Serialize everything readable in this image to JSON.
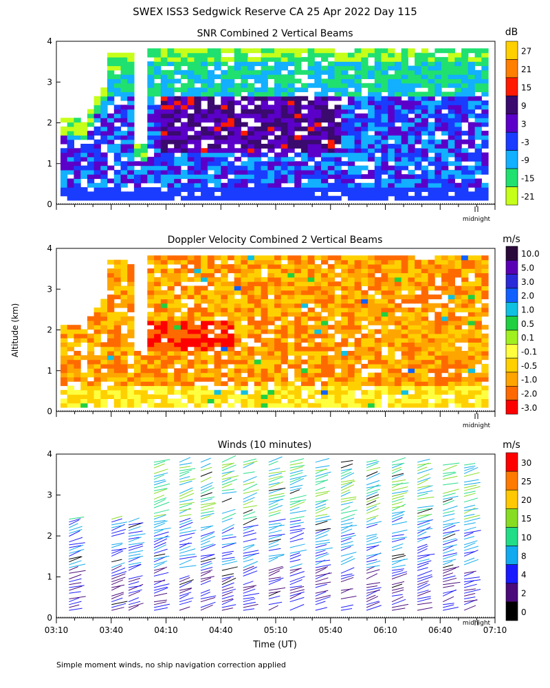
{
  "page_title": "SWEX ISS3 Sedgwick Reserve CA  25 Apr 2022 Day 115",
  "footer_note": "Simple moment winds, no ship navigation correction applied",
  "shared_ylabel": "Altitude (km)",
  "colors": {
    "missing": "#ffffff",
    "axes": "#000000"
  },
  "chart_data": [
    {
      "type": "heatmap",
      "title": "SNR Combined 2 Vertical Beams",
      "unit": "dB",
      "xlabel": "",
      "ylabel": "Altitude (km)",
      "ylim": [
        0,
        4
      ],
      "yticks": [
        "0",
        "1",
        "2",
        "3",
        "4"
      ],
      "x_annotation": "midnight",
      "colorbar": {
        "labels": [
          "27",
          "21",
          "15",
          "9",
          "3",
          "-3",
          "-9",
          "-15",
          "-21"
        ],
        "colors": [
          "#ffd000",
          "#ff7f00",
          "#ff1a00",
          "#3a0a6e",
          "#5a00c8",
          "#1a3cff",
          "#12b0ff",
          "#20e070",
          "#c6ff1a"
        ]
      }
    },
    {
      "type": "heatmap",
      "title": "Doppler Velocity Combined 2 Vertical Beams",
      "unit": "m/s",
      "xlabel": "",
      "ylabel": "Altitude (km)",
      "ylim": [
        0,
        4
      ],
      "yticks": [
        "0",
        "1",
        "2",
        "3",
        "4"
      ],
      "x_annotation": "midnight",
      "colorbar": {
        "labels": [
          "10.0",
          "5.0",
          "3.0",
          "2.0",
          "1.0",
          "0.5",
          "0.1",
          "-0.1",
          "-0.5",
          "-1.0",
          "-2.0",
          "-3.0"
        ],
        "colors": [
          "#2a0a3a",
          "#5a00b4",
          "#2a2ad8",
          "#1060ff",
          "#10c0e0",
          "#20d040",
          "#a0f020",
          "#ffff40",
          "#ffd000",
          "#ffa500",
          "#ff6a00",
          "#ff0000"
        ]
      }
    },
    {
      "type": "scatter",
      "title": "Winds (10 minutes)",
      "unit": "m/s",
      "xlabel": "Time (UT)",
      "ylabel": "Altitude (km)",
      "ylim": [
        0,
        4
      ],
      "yticks": [
        "0",
        "1",
        "2",
        "3",
        "4"
      ],
      "x_annotation": "midnight",
      "xticks": [
        "03:10",
        "03:40",
        "04:10",
        "04:40",
        "05:10",
        "05:40",
        "06:10",
        "06:40",
        "07:10"
      ],
      "colorbar": {
        "labels": [
          "30",
          "25",
          "20",
          "15",
          "10",
          "8",
          "4",
          "2",
          "0"
        ],
        "colors": [
          "#ff0000",
          "#ff7a00",
          "#ffc800",
          "#88dd22",
          "#22dd88",
          "#11aaee",
          "#1a1aff",
          "#4a0a7a",
          "#000000"
        ]
      }
    }
  ]
}
